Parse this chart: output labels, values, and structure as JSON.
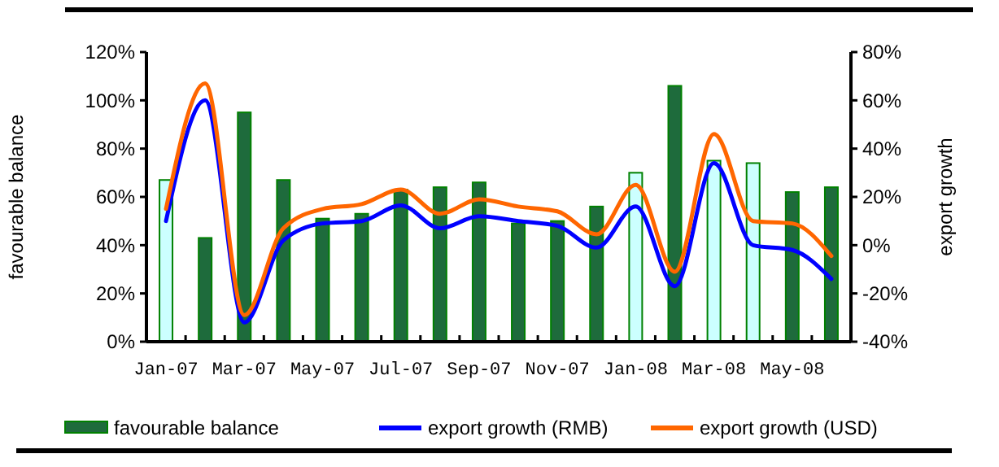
{
  "chart_data": {
    "type": "bar",
    "categories": [
      "Jan-07",
      null,
      "Mar-07",
      null,
      "May-07",
      null,
      "Jul-07",
      null,
      "Sep-07",
      null,
      "Nov-07",
      null,
      "Jan-08",
      null,
      "Mar-08",
      null,
      "May-08",
      null
    ],
    "ylabel": "favourable balance",
    "y2label": "export growth",
    "ylim": [
      0,
      120
    ],
    "yticks": [
      {
        "value": 0,
        "label": "0%"
      },
      {
        "value": 20,
        "label": "20%"
      },
      {
        "value": 40,
        "label": "40%"
      },
      {
        "value": 60,
        "label": "60%"
      },
      {
        "value": 80,
        "label": "80%"
      },
      {
        "value": 100,
        "label": "100%"
      },
      {
        "value": 120,
        "label": "120%"
      }
    ],
    "y2lim": [
      -40,
      80
    ],
    "y2ticks": [
      {
        "value": -40,
        "label": "-40%"
      },
      {
        "value": -20,
        "label": "-20%"
      },
      {
        "value": 0,
        "label": "0%"
      },
      {
        "value": 20,
        "label": "20%"
      },
      {
        "value": 40,
        "label": "40%"
      },
      {
        "value": 60,
        "label": "60%"
      },
      {
        "value": 80,
        "label": "80%"
      }
    ],
    "legend": "bottom",
    "grid": false,
    "series": [
      {
        "name": "favourable balance",
        "color": "#1e6b3c",
        "colors": [
          "#ccffff",
          "#1e6b3c",
          "#1e6b3c",
          "#1e6b3c",
          "#1e6b3c",
          "#1e6b3c",
          "#1e6b3c",
          "#1e6b3c",
          "#1e6b3c",
          "#1e6b3c",
          "#1e6b3c",
          "#1e6b3c",
          "#ccffff",
          "#1e6b3c",
          "#ccffff",
          "#ccffff",
          "#1e6b3c",
          "#1e6b3c"
        ],
        "values": [
          67,
          43,
          95,
          67,
          51,
          53,
          63,
          64,
          66,
          49,
          50,
          56,
          70,
          106,
          75,
          74,
          62,
          64
        ]
      },
      {
        "name": "export growth (RMB)",
        "type": "line",
        "axis": "y2",
        "color": "#0000ff",
        "values": [
          10,
          60,
          -32,
          2,
          9,
          10,
          16.5,
          7,
          12,
          10,
          8,
          -1,
          16,
          -17,
          34,
          0,
          -2,
          -14
        ]
      },
      {
        "name": "export growth (USD)",
        "type": "line",
        "axis": "y2",
        "color": "#ff6600",
        "values": [
          15,
          67,
          -29,
          7,
          15,
          17,
          23,
          13,
          19,
          16,
          14,
          4.5,
          25,
          -11,
          46,
          10,
          9,
          -4.5
        ]
      }
    ]
  }
}
